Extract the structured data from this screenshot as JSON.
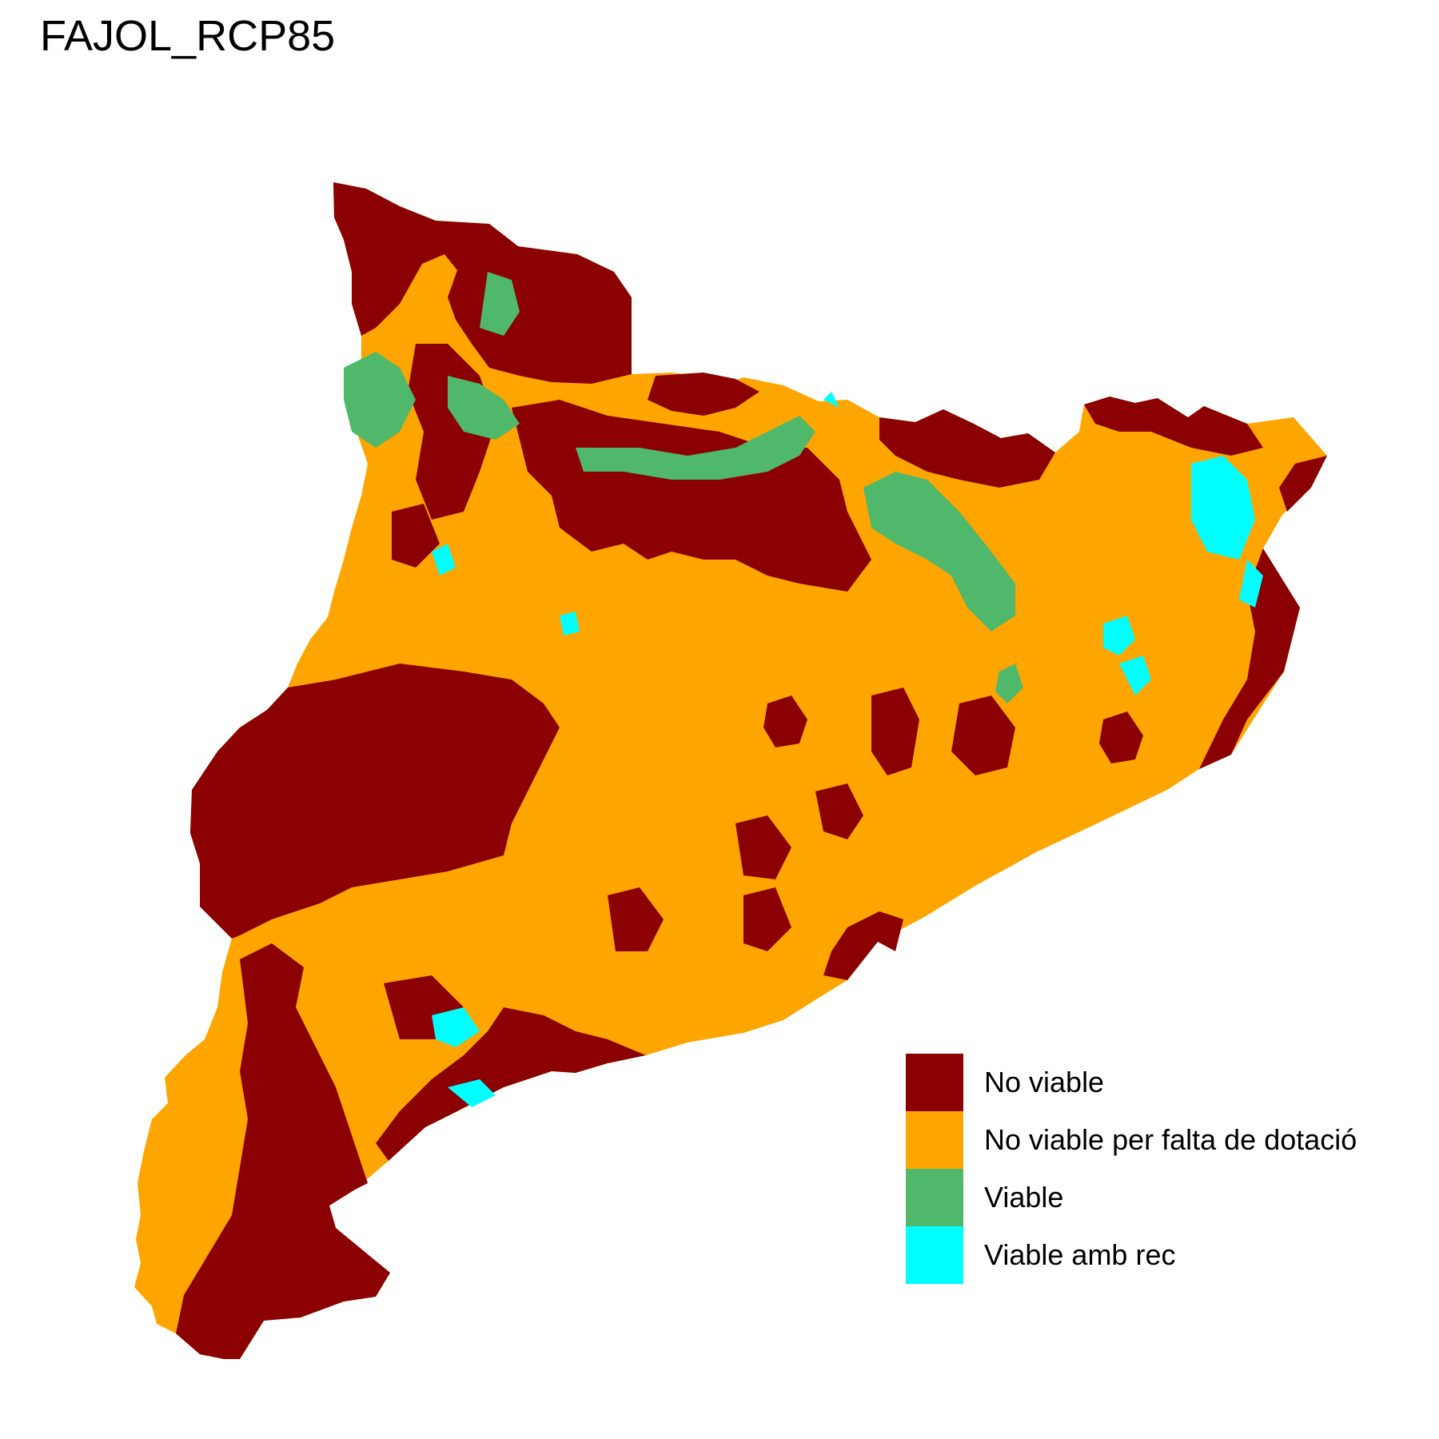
{
  "title": "FAJOL_RCP85",
  "legend": [
    {
      "label": "No viable",
      "color": "#8b0000"
    },
    {
      "label": "No viable per falta de dotació",
      "color": "#ffa500"
    },
    {
      "label": "Viable",
      "color": "#4fb86a"
    },
    {
      "label": "Viable amb rec",
      "color": "#00ffff"
    }
  ]
}
